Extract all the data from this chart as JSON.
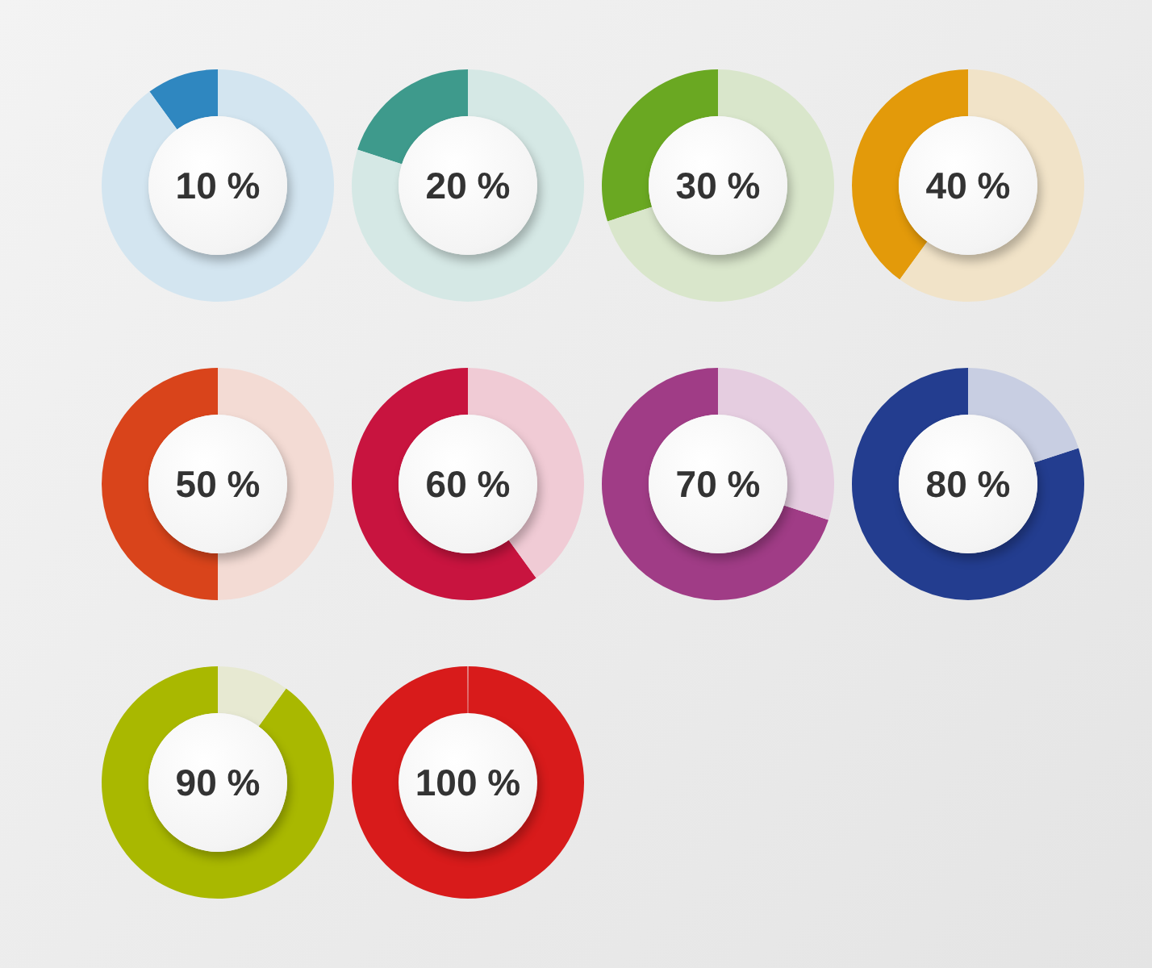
{
  "chart_data": [
    {
      "type": "donut",
      "categories": [
        null,
        null
      ],
      "values": [
        10,
        90
      ],
      "colors": [
        "#2f87c0",
        "#d3e5f0"
      ],
      "annotations": [
        "10 %"
      ]
    },
    {
      "type": "donut",
      "categories": [
        null,
        null
      ],
      "values": [
        20,
        80
      ],
      "colors": [
        "#3e9a8c",
        "#d5e8e5"
      ],
      "annotations": [
        "20 %"
      ]
    },
    {
      "type": "donut",
      "categories": [
        null,
        null
      ],
      "values": [
        30,
        70
      ],
      "colors": [
        "#6aa822",
        "#d9e6cb"
      ],
      "annotations": [
        "30 %"
      ]
    },
    {
      "type": "donut",
      "categories": [
        null,
        null
      ],
      "values": [
        40,
        60
      ],
      "colors": [
        "#e39a0a",
        "#f1e3c8"
      ],
      "annotations": [
        "40 %"
      ]
    },
    {
      "type": "donut",
      "categories": [
        null,
        null
      ],
      "values": [
        50,
        50
      ],
      "colors": [
        "#d9441b",
        "#f3dbd4"
      ],
      "annotations": [
        "50 %"
      ]
    },
    {
      "type": "donut",
      "categories": [
        null,
        null
      ],
      "values": [
        60,
        40
      ],
      "colors": [
        "#c8143f",
        "#f0cbd5"
      ],
      "annotations": [
        "60 %"
      ]
    },
    {
      "type": "donut",
      "categories": [
        null,
        null
      ],
      "values": [
        70,
        30
      ],
      "colors": [
        "#a03c86",
        "#e5cde0"
      ],
      "annotations": [
        "70 %"
      ]
    },
    {
      "type": "donut",
      "categories": [
        null,
        null
      ],
      "values": [
        80,
        20
      ],
      "colors": [
        "#233d8f",
        "#c8cee2"
      ],
      "annotations": [
        "80 %"
      ]
    },
    {
      "type": "donut",
      "categories": [
        null,
        null
      ],
      "values": [
        90,
        10
      ],
      "colors": [
        "#a9b800",
        "#e7e9d2"
      ],
      "annotations": [
        "90 %"
      ]
    },
    {
      "type": "pie",
      "categories": [
        null
      ],
      "values": [
        100
      ],
      "colors": [
        "#d81b1b"
      ],
      "annotations": [
        "100 %"
      ]
    }
  ]
}
